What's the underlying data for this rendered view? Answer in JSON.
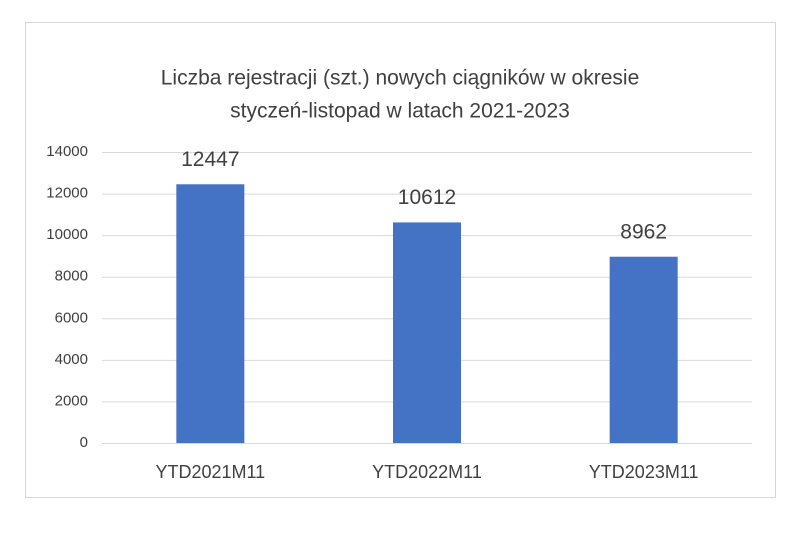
{
  "chart_data": {
    "type": "bar",
    "title": [
      "Liczba rejestracji (szt.) nowych ciągników w okresie",
      "styczeń-listopad w latach 2021-2023"
    ],
    "categories": [
      "YTD2021M11",
      "YTD2022M11",
      "YTD2023M11"
    ],
    "values": [
      12447,
      10612,
      8962
    ],
    "color": "#4472c4",
    "ylim": [
      0,
      14000
    ],
    "yticks": [
      0,
      2000,
      4000,
      6000,
      8000,
      10000,
      12000,
      14000
    ],
    "grid": true,
    "data_labels": true
  }
}
